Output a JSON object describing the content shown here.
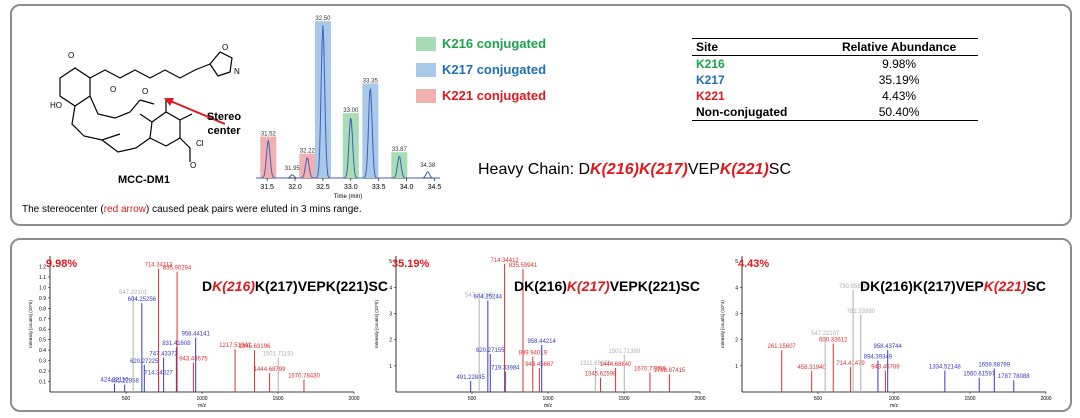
{
  "molecule_label": "MCC-DM1",
  "stereo_label": [
    "Stereo",
    "center"
  ],
  "caption": {
    "pre": "The stereocenter (",
    "red": "red arrow",
    "post": ") caused peak pairs were eluted in 3 mins range."
  },
  "legend": [
    {
      "label": "K216 conjugated",
      "color": "#1aa34a",
      "swatch": "#a8dcb4"
    },
    {
      "label": "K217 conjugated",
      "color": "#1f6fb4",
      "swatch": "#a9c9e8"
    },
    {
      "label": "K221 conjugated",
      "color": "#e0191c",
      "swatch": "#f2b0b0"
    }
  ],
  "heavy_chain": {
    "prefix": "Heavy Chain: D",
    "k216": "K(216)",
    "k217": "K(217)",
    "mid": "VEP",
    "k221": "K(221)",
    "suffix": "SC"
  },
  "table": {
    "headers": [
      "Site",
      "Relative Abundance"
    ],
    "rows": [
      {
        "site": "K216",
        "value": "9.98%",
        "color": "#1aa34a"
      },
      {
        "site": "K217",
        "value": "35.19%",
        "color": "#1f6fb4"
      },
      {
        "site": "K221",
        "value": "4.43%",
        "color": "#e0191c"
      },
      {
        "site": "Non-conjugated",
        "value": "50.40%",
        "color": "#000000"
      }
    ]
  },
  "chart_data": [
    {
      "type": "area",
      "xlabel": "Time (min)",
      "xlim": [
        31.3,
        34.6
      ],
      "ylim": [
        0,
        100
      ],
      "x_ticks": [
        "31.5",
        "32.0",
        "32.5",
        "33.0",
        "33.5",
        "34.0",
        "34.5"
      ],
      "peaks": [
        {
          "rt": 31.52,
          "label": "31.52",
          "height": 24,
          "series": "K221",
          "color": "#f2b0b0"
        },
        {
          "rt": 31.95,
          "label": "31.95",
          "height": 2,
          "series": "",
          "color": ""
        },
        {
          "rt": 32.22,
          "label": "32.22",
          "height": 13,
          "series": "K221",
          "color": "#f2b0b0"
        },
        {
          "rt": 32.5,
          "label": "32.50",
          "height": 98,
          "series": "K217",
          "color": "#a9c9e8"
        },
        {
          "rt": 33.0,
          "label": "33.00",
          "height": 39,
          "series": "K216",
          "color": "#a8dcb4"
        },
        {
          "rt": 33.35,
          "label": "33.35",
          "height": 58,
          "series": "K217",
          "color": "#a9c9e8"
        },
        {
          "rt": 33.87,
          "label": "33.87",
          "height": 14,
          "series": "K216",
          "color": "#a8dcb4"
        },
        {
          "rt": 34.38,
          "label": "34.38",
          "height": 4,
          "series": "",
          "color": ""
        }
      ]
    },
    {
      "type": "bar",
      "percent": "9.98%",
      "xlabel": "m/z",
      "ylabel": "Intensity [counts] (10^5)",
      "xlim": [
        0,
        2000
      ],
      "ylim": [
        0,
        1.3
      ],
      "y_ticks": [
        "0.1",
        "0.2",
        "0.3",
        "0.4",
        "0.5",
        "0.6",
        "0.7",
        "0.8",
        "0.9",
        "1.0",
        "1.1",
        "1.2"
      ],
      "x_ticks": [
        "500",
        "1000",
        "1500",
        "2000"
      ],
      "peptide": {
        "prefix": "D",
        "mod": "K(216)",
        "rest": "K(217)VEPK(221)SC"
      },
      "peaks": [
        {
          "mz": 424.2211,
          "label": "424.22110",
          "intensity": 0.08,
          "color": "#3838c8"
        },
        {
          "mz": 491.22858,
          "label": "491.22858",
          "intensity": 0.07,
          "color": "#3838c8"
        },
        {
          "mz": 547.22101,
          "label": "547.22101",
          "intensity": 0.92,
          "color": "#b0b0b0"
        },
        {
          "mz": 604.25256,
          "label": "604.25256",
          "intensity": 0.85,
          "color": "#3838c8"
        },
        {
          "mz": 620.27225,
          "label": "620.27225",
          "intensity": 0.26,
          "color": "#3838c8"
        },
        {
          "mz": 714.34027,
          "label": "714.34027",
          "intensity": 0.15,
          "color": "#3838c8"
        },
        {
          "mz": 714.34113,
          "label": "714.34113",
          "intensity": 1.18,
          "color": "#e03030"
        },
        {
          "mz": 747.43372,
          "label": "747.43372",
          "intensity": 0.33,
          "color": "#3838c8"
        },
        {
          "mz": 831.41608,
          "label": "831.41608",
          "intensity": 0.43,
          "color": "#3838c8"
        },
        {
          "mz": 835.90294,
          "label": "835.90294",
          "intensity": 1.15,
          "color": "#e03030"
        },
        {
          "mz": 943.43675,
          "label": "943.43675",
          "intensity": 0.28,
          "color": "#e03030"
        },
        {
          "mz": 958.44141,
          "label": "958.44141",
          "intensity": 0.52,
          "color": "#3838c8"
        },
        {
          "mz": 1217.51941,
          "label": "1217.51941",
          "intensity": 0.41,
          "color": "#e03030"
        },
        {
          "mz": 1345.63196,
          "label": "1345.63196",
          "intensity": 0.4,
          "color": "#e03030"
        },
        {
          "mz": 1444.68799,
          "label": "1444.68799",
          "intensity": 0.18,
          "color": "#e03030"
        },
        {
          "mz": 1501.71191,
          "label": "1501.71191",
          "intensity": 0.33,
          "color": "#b0b0b0"
        },
        {
          "mz": 1670.7843,
          "label": "1670.78430",
          "intensity": 0.12,
          "color": "#e03030"
        }
      ]
    },
    {
      "type": "bar",
      "percent": "35.19%",
      "xlabel": "m/z",
      "ylabel": "Intensity [counts] (10^5)",
      "xlim": [
        0,
        2000
      ],
      "ylim": [
        0,
        5.2
      ],
      "y_ticks": [
        "1",
        "2",
        "3",
        "4",
        "5"
      ],
      "x_ticks": [
        "500",
        "1000",
        "1500",
        "2000"
      ],
      "peptide": {
        "prefix": "DK(216)",
        "mod": "K(217)",
        "rest": "VEPK(221)SC"
      },
      "peaks": [
        {
          "mz": 491.22845,
          "label": "491.22845",
          "intensity": 0.42,
          "color": "#3838c8"
        },
        {
          "mz": 547.22089,
          "label": "547.22089",
          "intensity": 3.55,
          "color": "#b0b0b0"
        },
        {
          "mz": 604.25244,
          "label": "604.25244",
          "intensity": 3.5,
          "color": "#3838c8"
        },
        {
          "mz": 620.27155,
          "label": "620.27155",
          "intensity": 1.45,
          "color": "#3838c8"
        },
        {
          "mz": 714.34412,
          "label": "714.34412",
          "intensity": 4.9,
          "color": "#e03030"
        },
        {
          "mz": 719.33984,
          "label": "719.33984",
          "intensity": 0.78,
          "color": "#3838c8"
        },
        {
          "mz": 835.59941,
          "label": "835.59941",
          "intensity": 4.7,
          "color": "#e03030"
        },
        {
          "mz": 899.94019,
          "label": "899.94019",
          "intensity": 1.35,
          "color": "#e03030"
        },
        {
          "mz": 943.45667,
          "label": "943.45667",
          "intensity": 0.92,
          "color": "#e03030"
        },
        {
          "mz": 958.44214,
          "label": "958.44214",
          "intensity": 1.8,
          "color": "#3838c8"
        },
        {
          "mz": 1311.65979,
          "label": "1311.65979",
          "intensity": 0.95,
          "color": "#b0b0b0"
        },
        {
          "mz": 1345.62598,
          "label": "1345.62598",
          "intensity": 0.55,
          "color": "#e03030"
        },
        {
          "mz": 1444.6864,
          "label": "1444.68640",
          "intensity": 0.92,
          "color": "#e03030"
        },
        {
          "mz": 1501.71399,
          "label": "1501.71399",
          "intensity": 1.42,
          "color": "#b0b0b0"
        },
        {
          "mz": 1670.77856,
          "label": "1670.77856",
          "intensity": 0.75,
          "color": "#e03030"
        },
        {
          "mz": 1798.87415,
          "label": "1798.87415",
          "intensity": 0.68,
          "color": "#e03030"
        }
      ]
    },
    {
      "type": "bar",
      "percent": "4.43%",
      "xlabel": "m/z",
      "ylabel": "Intensity [counts] (10^4)",
      "xlim": [
        0,
        2000
      ],
      "ylim": [
        0,
        5.2
      ],
      "y_ticks": [
        "1",
        "2",
        "3",
        "4",
        "5"
      ],
      "x_ticks": [
        "500",
        "1000",
        "1500",
        "2000"
      ],
      "peptide": {
        "prefix": "DK(216)K(217)VEP",
        "mod": "K(221)",
        "rest": "SC"
      },
      "peaks": [
        {
          "mz": 261.15607,
          "label": "261.15607",
          "intensity": 1.6,
          "color": "#e03030"
        },
        {
          "mz": 458.3194,
          "label": "458.31940",
          "intensity": 0.8,
          "color": "#e03030"
        },
        {
          "mz": 547.22107,
          "label": "547.22107",
          "intensity": 2.1,
          "color": "#b0b0b0"
        },
        {
          "mz": 600.33612,
          "label": "600.33612",
          "intensity": 1.85,
          "color": "#e03030"
        },
        {
          "mz": 714.41479,
          "label": "714.41479",
          "intensity": 0.95,
          "color": "#e03030"
        },
        {
          "mz": 730.85828,
          "label": "730.85828",
          "intensity": 3.9,
          "color": "#b0b0b0"
        },
        {
          "mz": 781.3399,
          "label": "781.33990",
          "intensity": 2.95,
          "color": "#b0b0b0"
        },
        {
          "mz": 894.39349,
          "label": "894.39349",
          "intensity": 1.2,
          "color": "#3838c8"
        },
        {
          "mz": 943.45789,
          "label": "943.45789",
          "intensity": 0.82,
          "color": "#e03030"
        },
        {
          "mz": 958.43744,
          "label": "958.43744",
          "intensity": 1.6,
          "color": "#3838c8"
        },
        {
          "mz": 1334.52148,
          "label": "1334.52148",
          "intensity": 0.82,
          "color": "#3838c8"
        },
        {
          "mz": 1560.61597,
          "label": "1560.61597",
          "intensity": 0.55,
          "color": "#3838c8"
        },
        {
          "mz": 1659.68799,
          "label": "1659.68799",
          "intensity": 0.9,
          "color": "#3838c8"
        },
        {
          "mz": 1787.78088,
          "label": "1787.78088",
          "intensity": 0.45,
          "color": "#3838c8"
        }
      ]
    }
  ]
}
